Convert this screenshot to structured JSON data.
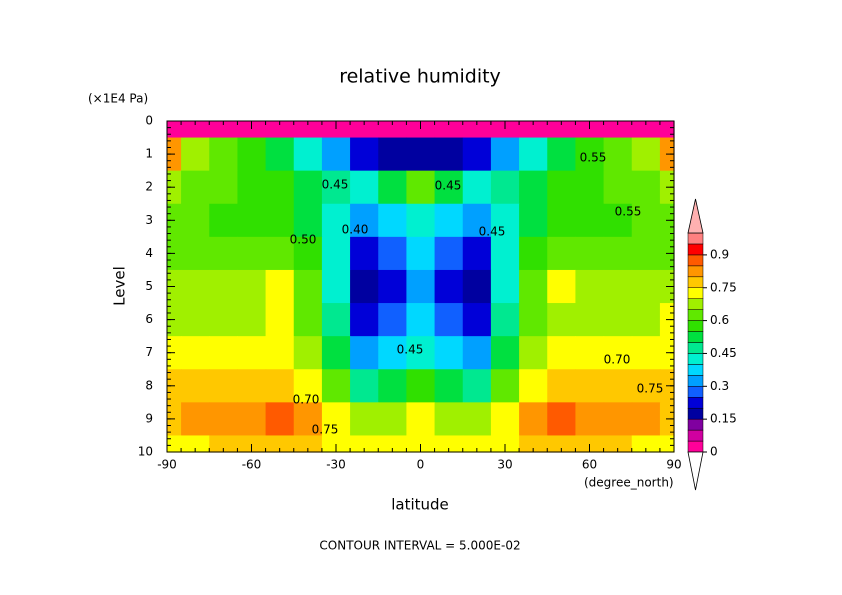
{
  "chart_data": {
    "type": "contour",
    "title": "relative humidity",
    "y_unit": "(×1E4 Pa)",
    "ylabel": "Level",
    "xlabel": "latitude",
    "x_unit": "(degree_north)",
    "footer": "CONTOUR INTERVAL = 5.000E-02",
    "xlim": [
      -90,
      90
    ],
    "xticks": [
      -90,
      -60,
      -30,
      0,
      30,
      60,
      90
    ],
    "ylim": [
      0,
      10
    ],
    "y_inverted": true,
    "yticks": [
      0,
      1,
      2,
      3,
      4,
      5,
      6,
      7,
      8,
      9,
      10
    ],
    "x": [
      -90,
      -80,
      -70,
      -60,
      -50,
      -40,
      -30,
      -20,
      -10,
      0,
      10,
      20,
      30,
      40,
      50,
      60,
      70,
      80,
      90
    ],
    "y": [
      0,
      1,
      2,
      3,
      4,
      5,
      6,
      7,
      8,
      9,
      10
    ],
    "z": [
      [
        0.02,
        0.02,
        0.02,
        0.02,
        0.02,
        0.02,
        0.02,
        0.02,
        0.02,
        0.02,
        0.02,
        0.02,
        0.02,
        0.02,
        0.02,
        0.02,
        0.02,
        0.02,
        0.02
      ],
      [
        0.8,
        0.65,
        0.6,
        0.55,
        0.5,
        0.4,
        0.3,
        0.2,
        0.15,
        0.15,
        0.15,
        0.2,
        0.3,
        0.4,
        0.5,
        0.55,
        0.6,
        0.65,
        0.8
      ],
      [
        0.68,
        0.62,
        0.6,
        0.58,
        0.56,
        0.52,
        0.45,
        0.42,
        0.5,
        0.62,
        0.5,
        0.42,
        0.45,
        0.52,
        0.56,
        0.58,
        0.6,
        0.62,
        0.68
      ],
      [
        0.6,
        0.6,
        0.58,
        0.57,
        0.55,
        0.5,
        0.42,
        0.3,
        0.35,
        0.42,
        0.35,
        0.3,
        0.42,
        0.5,
        0.55,
        0.57,
        0.58,
        0.6,
        0.6
      ],
      [
        0.62,
        0.62,
        0.62,
        0.63,
        0.62,
        0.55,
        0.4,
        0.2,
        0.25,
        0.38,
        0.25,
        0.2,
        0.4,
        0.55,
        0.62,
        0.63,
        0.62,
        0.62,
        0.62
      ],
      [
        0.65,
        0.66,
        0.67,
        0.68,
        0.72,
        0.6,
        0.4,
        0.18,
        0.22,
        0.32,
        0.22,
        0.18,
        0.4,
        0.6,
        0.72,
        0.68,
        0.67,
        0.66,
        0.65
      ],
      [
        0.66,
        0.67,
        0.67,
        0.68,
        0.7,
        0.62,
        0.45,
        0.22,
        0.25,
        0.35,
        0.25,
        0.22,
        0.45,
        0.62,
        0.68,
        0.67,
        0.67,
        0.68,
        0.7
      ],
      [
        0.7,
        0.7,
        0.7,
        0.7,
        0.7,
        0.65,
        0.52,
        0.3,
        0.35,
        0.42,
        0.35,
        0.3,
        0.52,
        0.65,
        0.7,
        0.7,
        0.7,
        0.7,
        0.7
      ],
      [
        0.78,
        0.78,
        0.77,
        0.76,
        0.76,
        0.72,
        0.62,
        0.45,
        0.5,
        0.55,
        0.5,
        0.45,
        0.62,
        0.72,
        0.76,
        0.76,
        0.77,
        0.77,
        0.77
      ],
      [
        0.78,
        0.8,
        0.82,
        0.84,
        0.86,
        0.8,
        0.7,
        0.65,
        0.68,
        0.7,
        0.68,
        0.65,
        0.7,
        0.8,
        0.86,
        0.84,
        0.82,
        0.8,
        0.78
      ],
      [
        0.7,
        0.72,
        0.75,
        0.77,
        0.78,
        0.75,
        0.72,
        0.7,
        0.72,
        0.73,
        0.72,
        0.7,
        0.72,
        0.75,
        0.78,
        0.77,
        0.75,
        0.72,
        0.7
      ]
    ],
    "levels": [
      0,
      0.05,
      0.1,
      0.15,
      0.2,
      0.25,
      0.3,
      0.35,
      0.4,
      0.45,
      0.5,
      0.55,
      0.6,
      0.65,
      0.7,
      0.75,
      0.8,
      0.85,
      0.9,
      0.95,
      1.0
    ],
    "colors": [
      "#ff0099",
      "#d000a0",
      "#8000a0",
      "#0000a0",
      "#0000d8",
      "#1060ff",
      "#00a0ff",
      "#00d8ff",
      "#00f0d0",
      "#00e890",
      "#00e040",
      "#30e000",
      "#60e800",
      "#a0f000",
      "#ffff00",
      "#ffc800",
      "#ff9600",
      "#ff5a00",
      "#ff0000",
      "#ff8080"
    ],
    "over_color": "#ffb0b0",
    "under_color": "#ffffff",
    "colorbar_ticks": [
      0,
      0.15,
      0.3,
      0.45,
      0.6,
      0.75,
      0.9
    ],
    "contour_labels": [
      "0.55",
      "0.70",
      "0.75",
      "0.45",
      "0.45",
      "0.50",
      "0.40",
      "0.45",
      "0.70",
      "0.75",
      "0.45",
      "0.55"
    ]
  }
}
